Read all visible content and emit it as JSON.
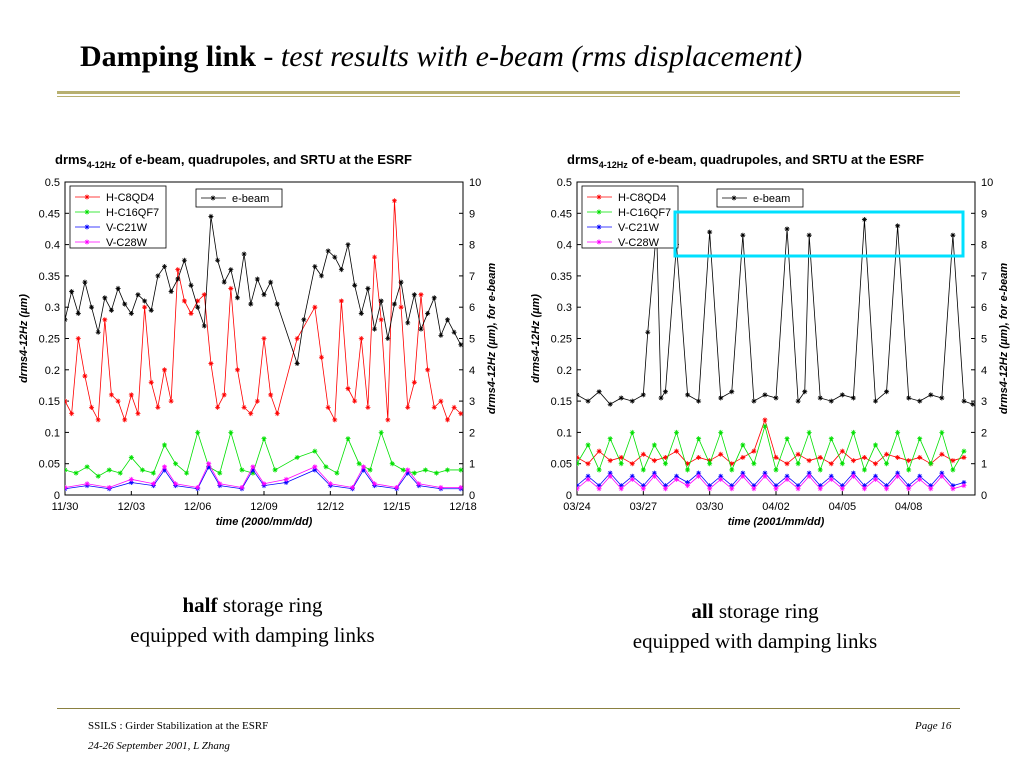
{
  "slide": {
    "title_bold": "Damping link",
    "title_sep": " - ",
    "title_italic": "test results with e-beam (rms displacement)"
  },
  "captions": {
    "left_bold": "half",
    "left_rest": " storage ring",
    "left_line2": "equipped with damping links",
    "right_bold": "all",
    "right_rest": " storage ring",
    "right_line2": "equipped with damping links"
  },
  "footer": {
    "left_line1": "SSILS  : Girder Stabilization at the ESRF",
    "left_line2": "24-26 September 2001,   L Zhang",
    "page": "Page 16"
  },
  "colors": {
    "H-C8QD4": "#ff0000",
    "H-C16QF7": "#00e000",
    "V-C21W": "#0000ff",
    "V-C28W": "#ff00ff",
    "e-beam": "#000000",
    "highlight": "#00e0ff"
  },
  "chart_data": [
    {
      "type": "line",
      "title_main": "drms",
      "title_sub": "4-12Hz",
      "title_rest": " of e-beam, quadrupoles, and SRTU at the ESRF",
      "xlabel": "time  (2000/mm/dd)",
      "ylabel_left": "drms4-12Hz (µm)",
      "ylabel_right": "drms4-12Hz (µm), for e-beam",
      "x_ticks": [
        "11/30",
        "12/03",
        "12/06",
        "12/09",
        "12/12",
        "12/15",
        "12/18"
      ],
      "xlim": [
        0,
        18
      ],
      "ylim_left": [
        0,
        0.5
      ],
      "ylim_right": [
        0,
        10
      ],
      "y_ticks_left": [
        "0",
        "0.05",
        "0.1",
        "0.15",
        "0.2",
        "0.25",
        "0.3",
        "0.35",
        "0.4",
        "0.45",
        "0.5"
      ],
      "y_ticks_right": [
        "0",
        "1",
        "2",
        "3",
        "4",
        "5",
        "6",
        "7",
        "8",
        "9",
        "10"
      ],
      "legend_left": [
        "H-C8QD4",
        "H-C16QF7",
        "V-C21W",
        "V-C28W"
      ],
      "legend_right": [
        "e-beam"
      ],
      "series": [
        {
          "name": "H-C8QD4",
          "axis": "left",
          "x": [
            0,
            0.3,
            0.6,
            0.9,
            1.2,
            1.5,
            1.8,
            2.1,
            2.4,
            2.7,
            3.0,
            3.3,
            3.6,
            3.9,
            4.2,
            4.5,
            4.8,
            5.1,
            5.4,
            5.7,
            6.0,
            6.3,
            6.6,
            6.9,
            7.2,
            7.5,
            7.8,
            8.1,
            8.4,
            8.7,
            9.0,
            9.3,
            9.6,
            10.5,
            11.3,
            11.6,
            11.9,
            12.2,
            12.5,
            12.8,
            13.1,
            13.4,
            13.7,
            14.0,
            14.3,
            14.6,
            14.9,
            15.2,
            15.5,
            15.8,
            16.1,
            16.4,
            16.7,
            17.0,
            17.3,
            17.6,
            17.9
          ],
          "y": [
            0.15,
            0.13,
            0.25,
            0.19,
            0.14,
            0.12,
            0.28,
            0.16,
            0.15,
            0.12,
            0.16,
            0.13,
            0.3,
            0.18,
            0.14,
            0.2,
            0.15,
            0.36,
            0.31,
            0.29,
            0.31,
            0.32,
            0.21,
            0.14,
            0.16,
            0.33,
            0.2,
            0.14,
            0.13,
            0.15,
            0.25,
            0.16,
            0.13,
            0.25,
            0.3,
            0.22,
            0.14,
            0.12,
            0.31,
            0.17,
            0.15,
            0.25,
            0.14,
            0.38,
            0.28,
            0.12,
            0.47,
            0.3,
            0.14,
            0.18,
            0.32,
            0.2,
            0.14,
            0.15,
            0.12,
            0.14,
            0.13
          ]
        },
        {
          "name": "H-C16QF7",
          "axis": "left",
          "x": [
            0,
            0.5,
            1,
            1.5,
            2,
            2.5,
            3,
            3.5,
            4,
            4.5,
            5,
            5.5,
            6,
            6.5,
            7,
            7.5,
            8,
            8.5,
            9,
            9.5,
            10.5,
            11.3,
            11.8,
            12.3,
            12.8,
            13.3,
            13.8,
            14.3,
            14.8,
            15.3,
            15.8,
            16.3,
            16.8,
            17.3,
            17.9
          ],
          "y": [
            0.04,
            0.035,
            0.045,
            0.03,
            0.04,
            0.035,
            0.06,
            0.04,
            0.035,
            0.08,
            0.05,
            0.035,
            0.1,
            0.045,
            0.035,
            0.1,
            0.04,
            0.035,
            0.09,
            0.04,
            0.06,
            0.07,
            0.045,
            0.035,
            0.09,
            0.05,
            0.04,
            0.1,
            0.05,
            0.04,
            0.035,
            0.04,
            0.035,
            0.04,
            0.04
          ]
        },
        {
          "name": "V-C21W",
          "axis": "left",
          "x": [
            0,
            1,
            2,
            3,
            4,
            4.5,
            5,
            6,
            6.5,
            7,
            8,
            8.5,
            9,
            10,
            11.3,
            12,
            13,
            13.5,
            14,
            15,
            15.5,
            16,
            17,
            17.9
          ],
          "y": [
            0.01,
            0.015,
            0.01,
            0.02,
            0.015,
            0.04,
            0.015,
            0.01,
            0.045,
            0.015,
            0.01,
            0.04,
            0.015,
            0.02,
            0.04,
            0.015,
            0.01,
            0.04,
            0.015,
            0.01,
            0.035,
            0.015,
            0.01,
            0.01
          ]
        },
        {
          "name": "V-C28W",
          "axis": "left",
          "x": [
            0,
            1,
            2,
            3,
            4,
            4.5,
            5,
            6,
            6.5,
            7,
            8,
            8.5,
            9,
            10,
            11.3,
            12,
            13,
            13.5,
            14,
            15,
            15.5,
            16,
            17,
            17.9
          ],
          "y": [
            0.012,
            0.018,
            0.012,
            0.025,
            0.018,
            0.045,
            0.018,
            0.012,
            0.05,
            0.018,
            0.012,
            0.045,
            0.018,
            0.025,
            0.045,
            0.018,
            0.012,
            0.045,
            0.018,
            0.012,
            0.04,
            0.018,
            0.012,
            0.012
          ]
        },
        {
          "name": "e-beam",
          "axis": "right",
          "x": [
            0,
            0.3,
            0.6,
            0.9,
            1.2,
            1.5,
            1.8,
            2.1,
            2.4,
            2.7,
            3.0,
            3.3,
            3.6,
            3.9,
            4.2,
            4.5,
            4.8,
            5.1,
            5.4,
            5.7,
            6.0,
            6.3,
            6.6,
            6.9,
            7.2,
            7.5,
            7.8,
            8.1,
            8.4,
            8.7,
            9.0,
            9.3,
            9.6,
            10.5,
            10.8,
            11.3,
            11.6,
            11.9,
            12.2,
            12.5,
            12.8,
            13.1,
            13.4,
            13.7,
            14.0,
            14.3,
            14.6,
            14.9,
            15.2,
            15.5,
            15.8,
            16.1,
            16.4,
            16.7,
            17.0,
            17.3,
            17.6,
            17.9
          ],
          "y": [
            5.6,
            6.5,
            5.8,
            6.8,
            6.0,
            5.2,
            6.3,
            5.9,
            6.6,
            6.1,
            5.8,
            6.4,
            6.2,
            5.9,
            7.0,
            7.3,
            6.5,
            6.9,
            7.5,
            6.7,
            6.0,
            5.4,
            8.9,
            7.5,
            6.8,
            7.2,
            6.3,
            7.7,
            6.1,
            6.9,
            6.4,
            6.8,
            6.1,
            4.2,
            5.6,
            7.3,
            7.0,
            7.8,
            7.6,
            7.2,
            8.0,
            6.7,
            5.8,
            6.6,
            5.3,
            6.2,
            5.0,
            6.1,
            6.8,
            5.5,
            6.4,
            5.3,
            5.8,
            6.3,
            5.1,
            5.6,
            5.2,
            4.8
          ]
        }
      ]
    },
    {
      "type": "line",
      "title_main": "drms",
      "title_sub": "4-12Hz",
      "title_rest": " of e-beam, quadrupoles, and SRTU at the ESRF",
      "xlabel": "time  (2001/mm/dd)",
      "ylabel_left": "drms4-12Hz (µm)",
      "ylabel_right": "drms4-12Hz (µm), for e-beam",
      "x_ticks": [
        "03/24",
        "03/27",
        "03/30",
        "04/02",
        "04/05",
        "04/08"
      ],
      "xlim": [
        0,
        18
      ],
      "ylim_left": [
        0,
        0.5
      ],
      "ylim_right": [
        0,
        10
      ],
      "y_ticks_left": [
        "0",
        "0.05",
        "0.1",
        "0.15",
        "0.2",
        "0.25",
        "0.3",
        "0.35",
        "0.4",
        "0.45",
        "0.5"
      ],
      "y_ticks_right": [
        "0",
        "1",
        "2",
        "3",
        "4",
        "5",
        "6",
        "7",
        "8",
        "9",
        "10"
      ],
      "legend_left": [
        "H-C8QD4",
        "H-C16QF7",
        "V-C21W",
        "V-C28W"
      ],
      "legend_right": [
        "e-beam"
      ],
      "series": [
        {
          "name": "H-C8QD4",
          "axis": "left",
          "x": [
            0,
            0.5,
            1,
            1.5,
            2,
            2.5,
            3,
            3.5,
            4,
            4.5,
            5,
            5.5,
            6,
            6.5,
            7,
            7.5,
            8,
            8.5,
            9,
            9.5,
            10,
            10.5,
            11,
            11.5,
            12,
            12.5,
            13,
            13.5,
            14,
            14.5,
            15,
            15.5,
            16,
            16.5,
            17,
            17.5
          ],
          "y": [
            0.06,
            0.05,
            0.07,
            0.055,
            0.06,
            0.05,
            0.065,
            0.055,
            0.06,
            0.07,
            0.05,
            0.06,
            0.055,
            0.065,
            0.05,
            0.06,
            0.07,
            0.12,
            0.06,
            0.05,
            0.065,
            0.055,
            0.06,
            0.05,
            0.07,
            0.055,
            0.06,
            0.05,
            0.065,
            0.06,
            0.055,
            0.06,
            0.05,
            0.065,
            0.055,
            0.06
          ]
        },
        {
          "name": "H-C16QF7",
          "axis": "left",
          "x": [
            0,
            0.5,
            1,
            1.5,
            2,
            2.5,
            3,
            3.5,
            4,
            4.5,
            5,
            5.5,
            6,
            6.5,
            7,
            7.5,
            8,
            8.5,
            9,
            9.5,
            10,
            10.5,
            11,
            11.5,
            12,
            12.5,
            13,
            13.5,
            14,
            14.5,
            15,
            15.5,
            16,
            16.5,
            17,
            17.5
          ],
          "y": [
            0.05,
            0.08,
            0.04,
            0.09,
            0.05,
            0.1,
            0.04,
            0.08,
            0.05,
            0.1,
            0.04,
            0.09,
            0.05,
            0.1,
            0.04,
            0.08,
            0.05,
            0.11,
            0.04,
            0.09,
            0.05,
            0.1,
            0.04,
            0.09,
            0.05,
            0.1,
            0.04,
            0.08,
            0.05,
            0.1,
            0.04,
            0.09,
            0.05,
            0.1,
            0.04,
            0.07
          ]
        },
        {
          "name": "V-C21W",
          "axis": "left",
          "x": [
            0,
            0.5,
            1,
            1.5,
            2,
            2.5,
            3,
            3.5,
            4,
            4.5,
            5,
            5.5,
            6,
            6.5,
            7,
            7.5,
            8,
            8.5,
            9,
            9.5,
            10,
            10.5,
            11,
            11.5,
            12,
            12.5,
            13,
            13.5,
            14,
            14.5,
            15,
            15.5,
            16,
            16.5,
            17,
            17.5
          ],
          "y": [
            0.015,
            0.03,
            0.015,
            0.035,
            0.015,
            0.03,
            0.015,
            0.035,
            0.015,
            0.03,
            0.02,
            0.035,
            0.015,
            0.03,
            0.015,
            0.035,
            0.015,
            0.035,
            0.015,
            0.03,
            0.015,
            0.035,
            0.015,
            0.03,
            0.015,
            0.035,
            0.015,
            0.03,
            0.015,
            0.035,
            0.015,
            0.03,
            0.015,
            0.035,
            0.015,
            0.02
          ]
        },
        {
          "name": "V-C28W",
          "axis": "left",
          "x": [
            0,
            0.5,
            1,
            1.5,
            2,
            2.5,
            3,
            3.5,
            4,
            4.5,
            5,
            5.5,
            6,
            6.5,
            7,
            7.5,
            8,
            8.5,
            9,
            9.5,
            10,
            10.5,
            11,
            11.5,
            12,
            12.5,
            13,
            13.5,
            14,
            14.5,
            15,
            15.5,
            16,
            16.5,
            17,
            17.5
          ],
          "y": [
            0.01,
            0.025,
            0.01,
            0.03,
            0.01,
            0.025,
            0.01,
            0.03,
            0.01,
            0.025,
            0.015,
            0.03,
            0.01,
            0.025,
            0.01,
            0.03,
            0.01,
            0.03,
            0.01,
            0.025,
            0.01,
            0.03,
            0.01,
            0.025,
            0.01,
            0.03,
            0.01,
            0.025,
            0.01,
            0.03,
            0.01,
            0.025,
            0.01,
            0.03,
            0.01,
            0.015
          ]
        },
        {
          "name": "e-beam",
          "axis": "right",
          "x": [
            0,
            0.5,
            1,
            1.5,
            2,
            2.5,
            3,
            3.2,
            3.6,
            3.8,
            4,
            4.5,
            5,
            5.5,
            6,
            6.5,
            7,
            7.5,
            8,
            8.5,
            9,
            9.5,
            10,
            10.3,
            10.5,
            11,
            11.5,
            12,
            12.5,
            13,
            13.5,
            14,
            14.5,
            15,
            15.5,
            16,
            16.5,
            17,
            17.5,
            17.9
          ],
          "y": [
            3.2,
            3.0,
            3.3,
            2.9,
            3.1,
            3.0,
            3.2,
            5.2,
            8.5,
            3.1,
            3.3,
            8.0,
            3.2,
            3.0,
            8.4,
            3.1,
            3.3,
            8.3,
            3.0,
            3.2,
            3.1,
            8.5,
            3.0,
            3.3,
            8.3,
            3.1,
            3.0,
            3.2,
            3.1,
            8.8,
            3.0,
            3.3,
            8.6,
            3.1,
            3.0,
            3.2,
            3.1,
            8.3,
            3.0,
            2.9
          ]
        }
      ]
    }
  ]
}
